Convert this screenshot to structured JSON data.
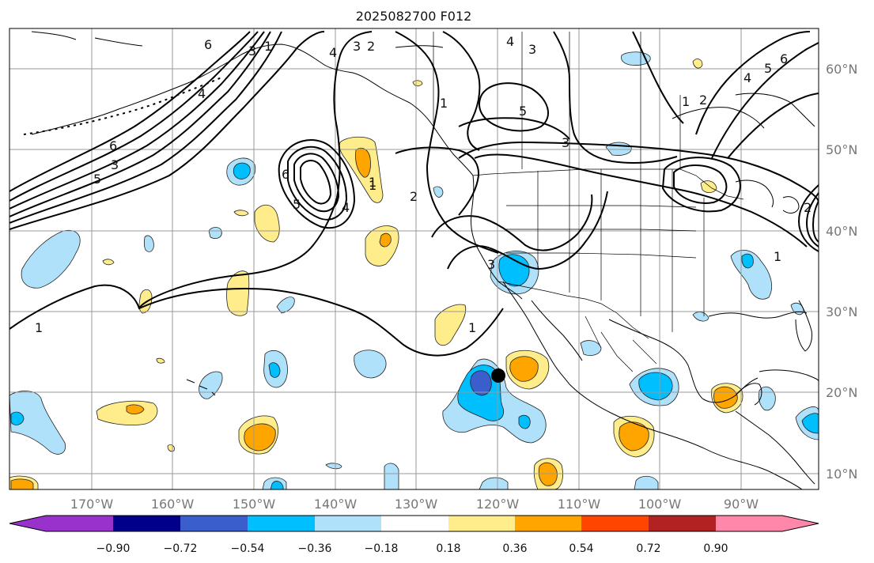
{
  "title": "2025082700 F012",
  "map": {
    "lat_ticks": [
      "60°N",
      "50°N",
      "40°N",
      "30°N",
      "20°N",
      "10°N"
    ],
    "lon_ticks": [
      "170°W",
      "160°W",
      "150°W",
      "140°W",
      "130°W",
      "120°W",
      "110°W",
      "100°W",
      "90°W"
    ],
    "contour_labels": [
      "6",
      "1",
      "3",
      "2",
      "4",
      "3",
      "1",
      "4",
      "5",
      "2",
      "6",
      "5",
      "4",
      "3",
      "3",
      "2",
      "1",
      "5",
      "6",
      "4",
      "3",
      "6",
      "5",
      "4",
      "1",
      "2",
      "1",
      "3",
      "1",
      "1",
      "1"
    ],
    "marker": "storm-center-dot"
  },
  "colorbar": {
    "tick_labels": [
      "−0.90",
      "−0.72",
      "−0.54",
      "−0.36",
      "−0.18",
      "0.18",
      "0.36",
      "0.54",
      "0.72",
      "0.90"
    ],
    "colors": [
      "#9932cc",
      "#00008b",
      "#3a5fcd",
      "#00bfff",
      "#afe1fa",
      "#ffffff",
      "#ffec8b",
      "#ffa500",
      "#ff4500",
      "#b22222",
      "#ff88aa"
    ]
  },
  "colors": {
    "neg_light": "#afe1fa",
    "neg_mid": "#00bfff",
    "neg_dark": "#3a5fcd",
    "pos_light": "#ffec8b",
    "pos_mid": "#ffa500",
    "grid": "#999999",
    "land": "#000000"
  }
}
